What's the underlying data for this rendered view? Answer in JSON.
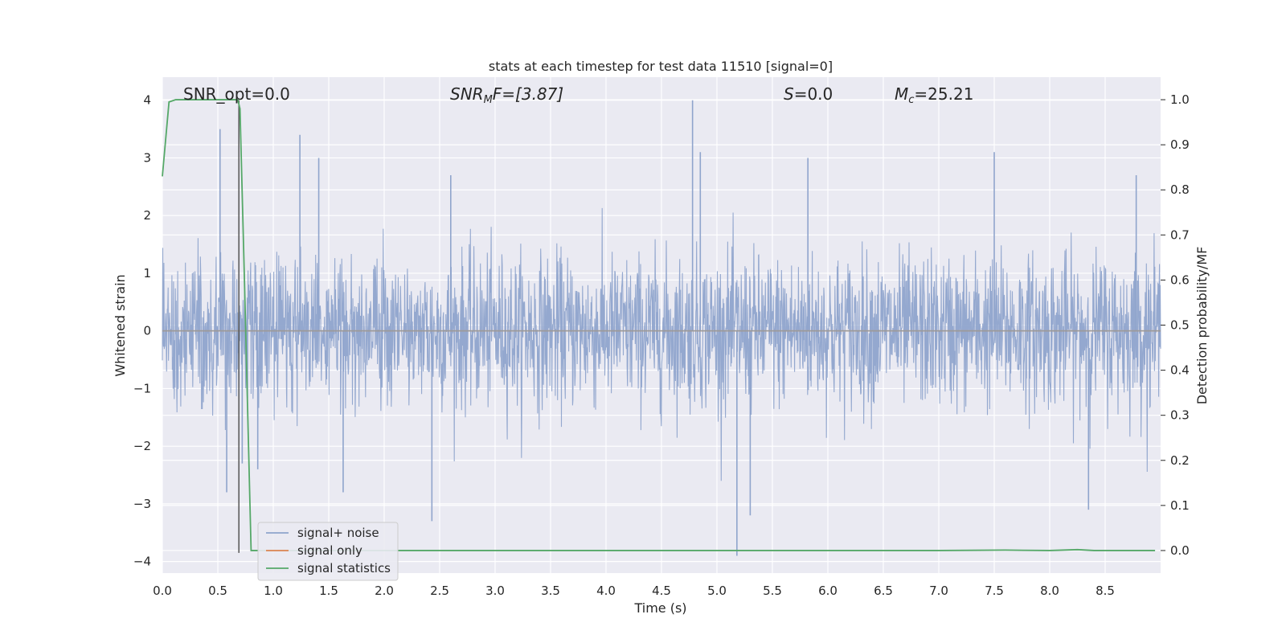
{
  "chart_data": {
    "type": "line",
    "title": "stats at each timestep for test data 11510 [signal=0]",
    "xlabel": "Time (s)",
    "ylabel": "Whitened strain",
    "y2label": "Detection probability/MF",
    "xlim": [
      0.0,
      9.0
    ],
    "ylim": [
      -4.2,
      4.4
    ],
    "y2lim": [
      -0.05,
      1.05
    ],
    "xticks": [
      "0.0",
      "0.5",
      "1.0",
      "1.5",
      "2.0",
      "2.5",
      "3.0",
      "3.5",
      "4.0",
      "4.5",
      "5.0",
      "5.5",
      "6.0",
      "6.5",
      "7.0",
      "7.5",
      "8.0",
      "8.5"
    ],
    "yticks": [
      "4",
      "3",
      "2",
      "1",
      "0",
      "−1",
      "−2",
      "−3",
      "−4"
    ],
    "y2ticks": [
      "1.0",
      "0.9",
      "0.8",
      "0.7",
      "0.6",
      "0.5",
      "0.4",
      "0.3",
      "0.2",
      "0.1",
      "0.0"
    ],
    "grid": true,
    "legend_position": "lower-left",
    "annotations": [
      {
        "label": "SNR_opt=0.0"
      },
      {
        "label_main": "SNR",
        "label_sub": "M",
        "label_rest": "F=[3.87]"
      },
      {
        "label_main": "S",
        "label_rest": "=0.0"
      },
      {
        "label_main": "M",
        "label_sub": "c",
        "label_rest": "=25.21"
      }
    ],
    "vertical_marker": {
      "x": 0.69,
      "y_from": -3.85,
      "y_to": 4.0
    },
    "series": [
      {
        "name": "signal+ noise",
        "color": "#8fa4cc",
        "axis": "left",
        "description_points": "dense white noise, typical |y|<~1.5, spikes",
        "spikes": [
          {
            "x": 0.52,
            "y": 3.5
          },
          {
            "x": 0.58,
            "y": -2.8
          },
          {
            "x": 0.72,
            "y": -2.3
          },
          {
            "x": 0.86,
            "y": -2.4
          },
          {
            "x": 1.24,
            "y": 3.4
          },
          {
            "x": 1.41,
            "y": 3.0
          },
          {
            "x": 1.63,
            "y": -2.8
          },
          {
            "x": 2.43,
            "y": -3.3
          },
          {
            "x": 2.6,
            "y": 2.7
          },
          {
            "x": 4.78,
            "y": 4.0
          },
          {
            "x": 4.85,
            "y": 3.1
          },
          {
            "x": 5.18,
            "y": -3.9
          },
          {
            "x": 5.3,
            "y": -3.2
          },
          {
            "x": 5.82,
            "y": 3.0
          },
          {
            "x": 7.5,
            "y": 3.1
          },
          {
            "x": 8.35,
            "y": -3.1
          },
          {
            "x": 8.78,
            "y": 2.7
          }
        ]
      },
      {
        "name": "signal only",
        "color": "#dd8452",
        "axis": "left",
        "x": [
          0.0,
          9.0
        ],
        "y": [
          0.0,
          0.0
        ]
      },
      {
        "name": "signal statistics",
        "color": "#55a868",
        "axis": "right",
        "x": [
          0.0,
          0.06,
          0.12,
          0.3,
          0.5,
          0.68,
          0.7,
          0.74,
          0.8,
          1.0,
          3.0,
          5.0,
          7.0,
          7.6,
          8.0,
          8.25,
          8.4,
          8.95
        ],
        "y": [
          0.83,
          0.995,
          1.0,
          1.0,
          1.0,
          1.0,
          0.98,
          0.6,
          0.0,
          0.0,
          0.0,
          0.0,
          0.0,
          0.001,
          0.0,
          0.002,
          0.0,
          0.0
        ]
      }
    ]
  }
}
